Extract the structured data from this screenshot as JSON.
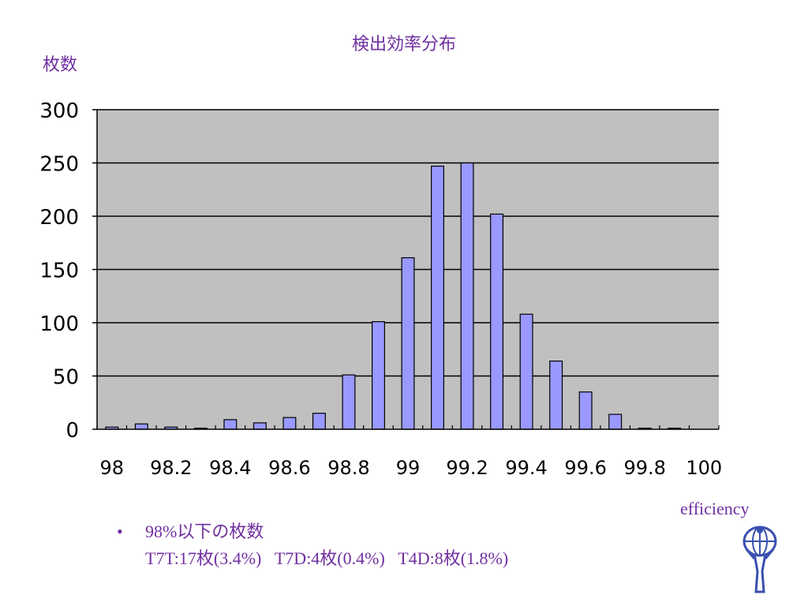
{
  "chart_data": {
    "type": "bar",
    "title": "検出効率分布",
    "ylabel": "枚数",
    "xlabel": "efficiency",
    "categories": [
      98.0,
      98.1,
      98.2,
      98.3,
      98.4,
      98.5,
      98.6,
      98.7,
      98.8,
      98.9,
      99.0,
      99.1,
      99.2,
      99.3,
      99.4,
      99.5,
      99.6,
      99.7,
      99.8,
      99.9,
      100.0
    ],
    "values": [
      2,
      5,
      2,
      1,
      9,
      6,
      11,
      15,
      51,
      101,
      161,
      247,
      250,
      202,
      108,
      64,
      35,
      14,
      1,
      1,
      0
    ],
    "x_tick_labels": [
      "98",
      "98.2",
      "98.4",
      "98.6",
      "98.8",
      "99",
      "99.2",
      "99.4",
      "99.6",
      "99.8",
      "100"
    ],
    "y_tick_labels": [
      "0",
      "50",
      "100",
      "150",
      "200",
      "250",
      "300"
    ],
    "ylim": [
      0,
      300
    ],
    "grid": true,
    "legend": "none",
    "colors": {
      "bar": "#9999ff",
      "plot_bg": "#c0c0c0",
      "text": "#7030a0"
    }
  },
  "notes": {
    "bullet": "•",
    "line1": "98%以下の枚数",
    "line2": "T7T:17枚(3.4%)   T7D:4枚(0.4%)   T4D:8枚(1.8%)"
  },
  "logo": {
    "icon": "atlas-logo-icon"
  }
}
